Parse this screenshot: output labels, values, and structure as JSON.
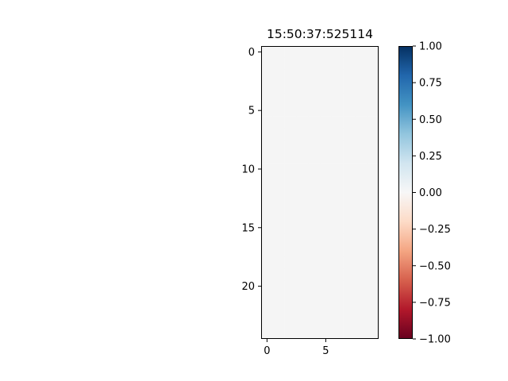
{
  "chart_data": {
    "type": "heatmap",
    "title": "15:50:37:525114",
    "xlabel": "",
    "ylabel": "",
    "rows": 25,
    "cols": 10,
    "fill_value": 0.0,
    "x_ticks": [
      0,
      5
    ],
    "x_tick_labels": [
      "0",
      "5"
    ],
    "y_ticks": [
      0,
      5,
      10,
      15,
      20
    ],
    "y_tick_labels": [
      "0",
      "5",
      "10",
      "15",
      "20"
    ],
    "colormap": "RdBu",
    "colorbar": {
      "vmin": -1.0,
      "vmax": 1.0,
      "ticks": [
        1.0,
        0.75,
        0.5,
        0.25,
        0.0,
        -0.25,
        -0.5,
        -0.75,
        -1.0
      ],
      "tick_labels": [
        "1.00",
        "0.75",
        "0.50",
        "0.25",
        "0.00",
        "−0.25",
        "−0.50",
        "−0.75",
        "−1.00"
      ],
      "colors": [
        "#67001f",
        "#b2182b",
        "#d6604d",
        "#f4a582",
        "#fddbc7",
        "#f7f7f7",
        "#d1e5f0",
        "#92c5de",
        "#4393c3",
        "#2166ac",
        "#053061"
      ]
    },
    "cell_color": "#f5f5f5",
    "grid": false
  }
}
